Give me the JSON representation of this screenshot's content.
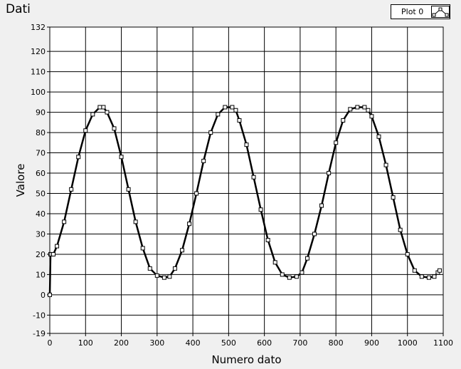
{
  "chart_data": {
    "type": "line",
    "title": "Dati",
    "xlabel": "Numero dato",
    "ylabel": "Valore",
    "xlim": [
      0,
      1100
    ],
    "ylim": [
      -19,
      132
    ],
    "xticks": [
      0,
      100,
      200,
      300,
      400,
      500,
      600,
      700,
      800,
      900,
      1000,
      1100
    ],
    "yticks": [
      -19,
      -10,
      0,
      10,
      20,
      30,
      40,
      50,
      60,
      70,
      80,
      90,
      100,
      110,
      120,
      132
    ],
    "grid": true,
    "legend": "top-right",
    "series": [
      {
        "name": "Plot 0",
        "marker": "square",
        "color": "#000000",
        "x": [
          0,
          2,
          5,
          10,
          20,
          40,
          60,
          80,
          100,
          120,
          140,
          150,
          160,
          180,
          200,
          220,
          240,
          260,
          280,
          300,
          320,
          335,
          350,
          370,
          390,
          410,
          430,
          450,
          470,
          490,
          510,
          520,
          530,
          550,
          570,
          590,
          610,
          630,
          650,
          670,
          690,
          705,
          720,
          740,
          760,
          780,
          800,
          820,
          840,
          860,
          880,
          890,
          900,
          920,
          940,
          960,
          980,
          1000,
          1020,
          1040,
          1060,
          1075,
          1085,
          1090
        ],
        "y": [
          0,
          20,
          20,
          20,
          24,
          36,
          52,
          68,
          81,
          89,
          92.5,
          92.5,
          90,
          82,
          68,
          52,
          36,
          23,
          13,
          9.5,
          8.5,
          9,
          13,
          22,
          35,
          50,
          66,
          80,
          89,
          92.5,
          92.5,
          91,
          86,
          74,
          58,
          42,
          27,
          16,
          10,
          8.5,
          9,
          11,
          18,
          30,
          44,
          60,
          75,
          86,
          91.5,
          92.5,
          92.5,
          91,
          88,
          78,
          64,
          48,
          32,
          20,
          12,
          9,
          8.5,
          9,
          11,
          12
        ]
      }
    ]
  }
}
